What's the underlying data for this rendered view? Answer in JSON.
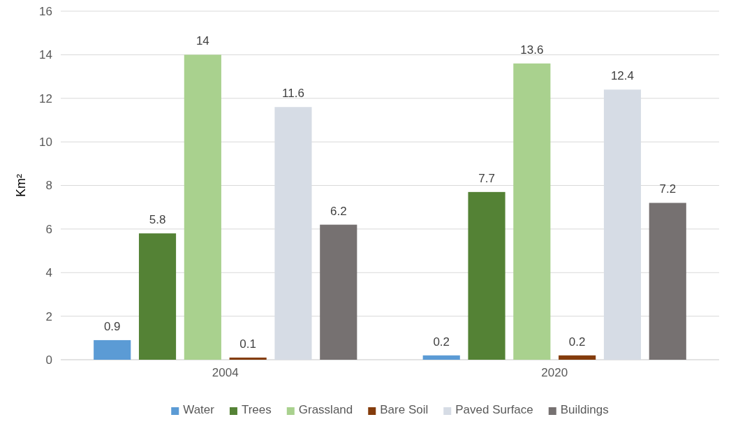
{
  "chart_data": {
    "type": "bar",
    "ylabel": "Km²",
    "categories": [
      "2004",
      "2020"
    ],
    "series": [
      {
        "name": "Water",
        "color": "#5b9bd5",
        "values": [
          0.9,
          0.2
        ]
      },
      {
        "name": "Trees",
        "color": "#548235",
        "values": [
          5.8,
          7.7
        ]
      },
      {
        "name": "Grassland",
        "color": "#a9d18e",
        "values": [
          14,
          13.6
        ]
      },
      {
        "name": "Bare Soil",
        "color": "#843c0c",
        "values": [
          0.1,
          0.2
        ]
      },
      {
        "name": "Paved Surface",
        "color": "#d6dce5",
        "values": [
          11.6,
          12.4
        ]
      },
      {
        "name": "Buildings",
        "color": "#767171",
        "values": [
          6.2,
          7.2
        ]
      }
    ],
    "ylim": [
      0,
      16
    ],
    "yticks": [
      0,
      2,
      4,
      6,
      8,
      10,
      12,
      14,
      16
    ],
    "grid": "y",
    "data_labels": true,
    "legend": "bottom"
  }
}
